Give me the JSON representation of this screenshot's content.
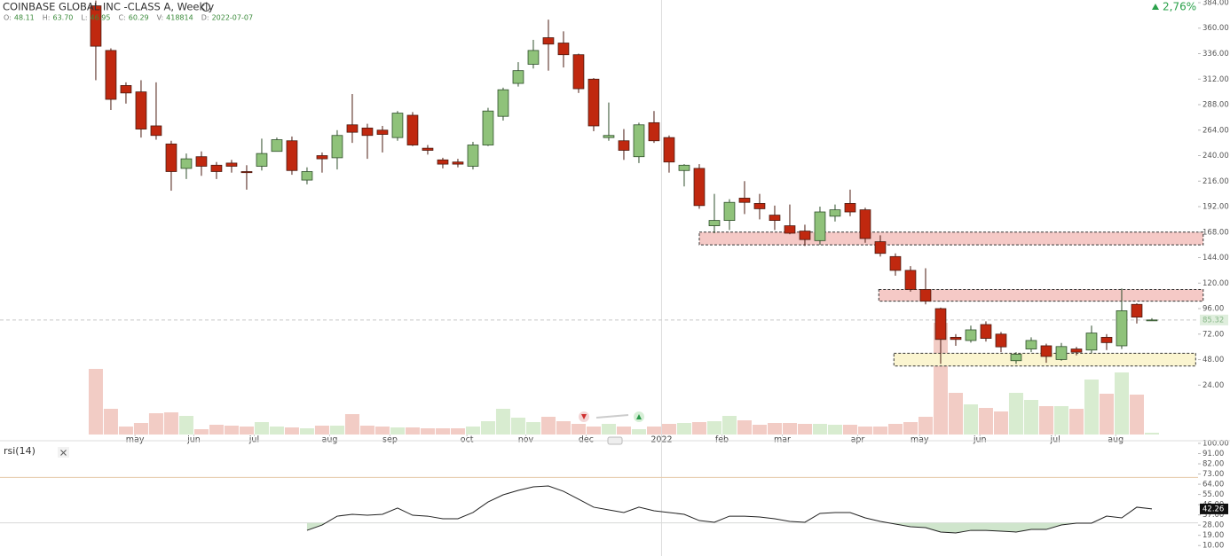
{
  "chart_data": [
    {
      "type": "candlestick",
      "title": "COINBASE GLOBAL INC -CLASS A, Weekly",
      "ohlc_header": [
        {
          "name": "O:",
          "value": "48.11"
        },
        {
          "name": "H:",
          "value": "63.70"
        },
        {
          "name": "L:",
          "value": "46.95"
        },
        {
          "name": "C:",
          "value": "60.29"
        },
        {
          "name": "V:",
          "value": "418814"
        },
        {
          "name": "D:",
          "value": "2022-07-07"
        }
      ],
      "change": "2,76%",
      "open": [
        381,
        339,
        306,
        300,
        268,
        251,
        228,
        239,
        231,
        233,
        225,
        230,
        244,
        254,
        217,
        240,
        238,
        269,
        266,
        264,
        257,
        278,
        247,
        236,
        234,
        230,
        250,
        277,
        308,
        326,
        351,
        346,
        335,
        312,
        257,
        254,
        239,
        271,
        257,
        226,
        228,
        174,
        179,
        200,
        195,
        184,
        174,
        169,
        160,
        183,
        195,
        189,
        159,
        145,
        132,
        114,
        96,
        69,
        66,
        81,
        72,
        47,
        58,
        61,
        48.11,
        58,
        57,
        69,
        61,
        100,
        85
      ],
      "high": [
        386,
        341,
        309,
        311,
        309,
        254,
        242,
        244,
        234,
        236,
        231,
        256,
        257,
        258,
        229,
        243,
        264,
        298,
        270,
        268,
        282,
        281,
        250,
        238,
        237,
        253,
        285,
        304,
        328,
        349,
        368,
        357,
        336,
        313,
        290,
        265,
        271,
        282,
        259,
        232,
        232,
        204,
        199,
        216,
        204,
        193,
        194,
        175,
        192,
        194,
        208,
        191,
        165,
        148,
        136,
        134,
        97,
        72,
        80,
        84,
        74,
        55,
        69,
        63,
        63.7,
        60,
        80,
        72,
        115,
        101,
        87
      ],
      "low": [
        311,
        283,
        289,
        257,
        255,
        207,
        218,
        221,
        218,
        224,
        208,
        226,
        244,
        222,
        213,
        224,
        227,
        252,
        237,
        243,
        254,
        249,
        241,
        228,
        229,
        227,
        249,
        273,
        305,
        322,
        320,
        323,
        299,
        263,
        254,
        236,
        233,
        252,
        224,
        211,
        190,
        167,
        170,
        185,
        180,
        170,
        166,
        155,
        156,
        178,
        183,
        158,
        145,
        127,
        112,
        100,
        44,
        61,
        64,
        65,
        55,
        44,
        55,
        45,
        46.95,
        52,
        54,
        57,
        58,
        82,
        85
      ],
      "close": [
        343,
        293,
        299,
        265,
        259,
        225,
        237,
        230,
        225,
        230,
        224,
        242,
        255,
        226,
        225,
        237,
        259,
        262,
        259,
        260,
        280,
        250,
        245,
        232,
        232,
        250,
        282,
        302,
        320,
        339,
        345,
        335,
        303,
        268,
        259,
        245,
        269,
        254,
        234,
        231,
        193,
        179,
        196,
        196,
        190,
        179,
        167,
        161,
        187,
        189,
        187,
        162,
        148,
        132,
        114,
        103,
        67,
        67,
        76,
        68,
        60,
        53,
        66,
        51,
        60.29,
        55,
        73,
        64,
        94,
        88,
        85.32
      ],
      "volume": [
        74,
        29,
        9,
        13,
        24,
        25,
        21,
        6,
        11,
        10,
        9,
        14,
        9,
        8,
        7,
        10,
        10,
        23,
        10,
        9,
        8,
        8,
        7,
        7,
        7,
        9,
        15,
        29,
        19,
        14,
        20,
        15,
        12,
        9,
        12,
        9,
        6,
        9,
        12,
        13,
        14,
        15,
        21,
        16,
        11,
        13,
        13,
        12,
        12,
        11,
        11,
        9,
        9,
        12,
        14,
        20,
        126,
        47,
        34,
        30,
        26,
        47,
        39,
        32,
        32,
        29,
        62,
        46,
        70,
        45,
        2
      ],
      "ylim": [
        -22.5,
        386.5
      ],
      "yticks": [
        {
          "value": 384,
          "label": "384.00"
        },
        {
          "value": 360,
          "label": "360.00"
        },
        {
          "value": 336,
          "label": "336.00"
        },
        {
          "value": 312,
          "label": "312.00"
        },
        {
          "value": 288,
          "label": "288.00"
        },
        {
          "value": 264,
          "label": "264.00"
        },
        {
          "value": 240,
          "label": "240.00"
        },
        {
          "value": 216,
          "label": "216.00"
        },
        {
          "value": 192,
          "label": "192.00"
        },
        {
          "value": 168,
          "label": "168.00"
        },
        {
          "value": 144,
          "label": "144.00"
        },
        {
          "value": 120,
          "label": "120.00"
        },
        {
          "value": 96,
          "label": "96.00"
        },
        {
          "value": 72,
          "label": "72.00"
        },
        {
          "value": 48,
          "label": "48.00"
        },
        {
          "value": 24,
          "label": "24.00"
        }
      ],
      "volume_lim": [
        0,
        490
      ],
      "xlim": [
        -6.35,
        73.06
      ],
      "xticks": [
        {
          "value": 2.6,
          "label": "may"
        },
        {
          "value": 6.5,
          "label": "jun"
        },
        {
          "value": 10.5,
          "label": "jul"
        },
        {
          "value": 15.5,
          "label": "aug"
        },
        {
          "value": 19.5,
          "label": "sep"
        },
        {
          "value": 24.6,
          "label": "oct"
        },
        {
          "value": 28.5,
          "label": "nov"
        },
        {
          "value": 32.5,
          "label": "dec"
        },
        {
          "value": 41.5,
          "label": "feb"
        },
        {
          "value": 45.5,
          "label": "mar"
        },
        {
          "value": 50.5,
          "label": "apr"
        },
        {
          "value": 54.6,
          "label": "may"
        },
        {
          "value": 58.6,
          "label": "jun"
        },
        {
          "value": 63.6,
          "label": "jul"
        },
        {
          "value": 67.6,
          "label": "aug"
        }
      ],
      "year_start": {
        "value": 37.5,
        "label": 2022
      },
      "last_price": 85.32,
      "zones": [
        {
          "low": 156,
          "high": 168,
          "start": 40,
          "end": 73.4,
          "color": "#f5c9c6"
        },
        {
          "low": 103,
          "high": 114,
          "start": 51.9,
          "end": 73.4,
          "color": "#f5c9c6"
        },
        {
          "low": 42,
          "high": 54,
          "start": 52.9,
          "end": 72.9,
          "color": "#fbf5d0"
        }
      ],
      "up_color": "#8fc27a",
      "down_color": "#c0280f"
    },
    {
      "type": "line",
      "label": "rsi(14)",
      "values": [
        null,
        null,
        null,
        null,
        null,
        null,
        null,
        null,
        null,
        null,
        null,
        null,
        null,
        null,
        23.4,
        28.1,
        35.9,
        37.5,
        36.7,
        37.5,
        43.0,
        36.7,
        35.9,
        33.6,
        33.6,
        39.1,
        48.4,
        54.7,
        58.6,
        61.7,
        62.5,
        57.8,
        50.8,
        43.8,
        41.4,
        39.1,
        43.8,
        40.6,
        39.1,
        37.5,
        32.0,
        30.5,
        35.9,
        35.9,
        35.2,
        33.6,
        31.3,
        30.5,
        38.3,
        39.1,
        39.1,
        34.4,
        31.3,
        28.9,
        26.6,
        25.8,
        21.9,
        21.1,
        23.4,
        23.4,
        22.7,
        21.9,
        24.2,
        24.2,
        28.1,
        29.7,
        29.7,
        35.9,
        34.4,
        43.8,
        42.26
      ],
      "ylim": [
        0.8,
        100
      ],
      "yticks": [
        {
          "value": 100,
          "label": "100.00"
        },
        {
          "value": 91,
          "label": "91.00"
        },
        {
          "value": 82,
          "label": "82.00"
        },
        {
          "value": 73,
          "label": "73.00"
        },
        {
          "value": 64,
          "label": "64.00"
        },
        {
          "value": 55,
          "label": "55.00"
        },
        {
          "value": 46,
          "label": "46.00"
        },
        {
          "value": 37,
          "label": "37.00"
        },
        {
          "value": 28,
          "label": "28.00"
        },
        {
          "value": 19,
          "label": "19.00"
        },
        {
          "value": 10,
          "label": "10.00"
        }
      ],
      "levels": [
        70,
        30
      ],
      "color": "#222"
    }
  ]
}
